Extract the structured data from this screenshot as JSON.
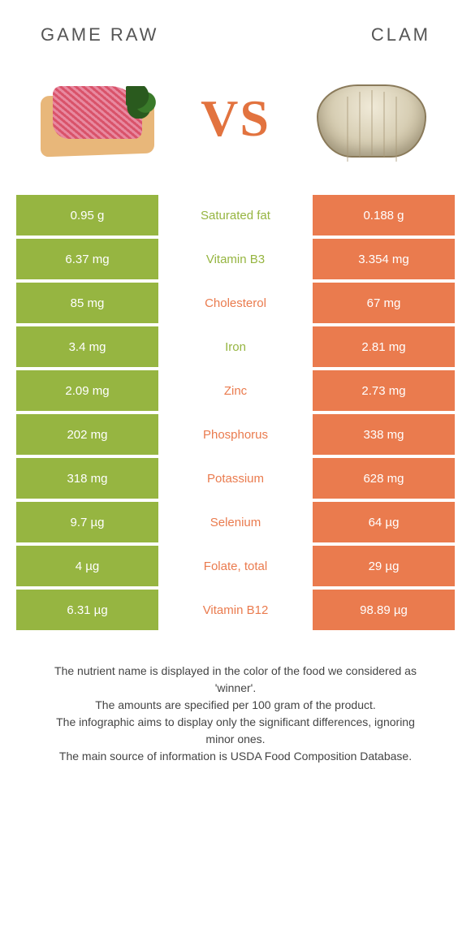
{
  "header": {
    "left_title": "GAME RAW",
    "right_title": "CLAM",
    "vs": "VS"
  },
  "colors": {
    "green": "#96b541",
    "orange": "#ea7b4e",
    "text_dark": "#444444"
  },
  "table": {
    "rows": [
      {
        "left": "0.95 g",
        "label": "Saturated fat",
        "right": "0.188 g",
        "label_color": "#96b541"
      },
      {
        "left": "6.37 mg",
        "label": "Vitamin B3",
        "right": "3.354 mg",
        "label_color": "#96b541"
      },
      {
        "left": "85 mg",
        "label": "Cholesterol",
        "right": "67 mg",
        "label_color": "#ea7b4e"
      },
      {
        "left": "3.4 mg",
        "label": "Iron",
        "right": "2.81 mg",
        "label_color": "#96b541"
      },
      {
        "left": "2.09 mg",
        "label": "Zinc",
        "right": "2.73 mg",
        "label_color": "#ea7b4e"
      },
      {
        "left": "202 mg",
        "label": "Phosphorus",
        "right": "338 mg",
        "label_color": "#ea7b4e"
      },
      {
        "left": "318 mg",
        "label": "Potassium",
        "right": "628 mg",
        "label_color": "#ea7b4e"
      },
      {
        "left": "9.7 µg",
        "label": "Selenium",
        "right": "64 µg",
        "label_color": "#ea7b4e"
      },
      {
        "left": "4 µg",
        "label": "Folate, total",
        "right": "29 µg",
        "label_color": "#ea7b4e"
      },
      {
        "left": "6.31 µg",
        "label": "Vitamin B12",
        "right": "98.89 µg",
        "label_color": "#ea7b4e"
      }
    ]
  },
  "footer": {
    "line1": "The nutrient name is displayed in the color of the food we considered as 'winner'.",
    "line2": "The amounts are specified per 100 gram of the product.",
    "line3": "The infographic aims to display only the significant differences, ignoring minor ones.",
    "line4": "The main source of information is USDA Food Composition Database."
  }
}
